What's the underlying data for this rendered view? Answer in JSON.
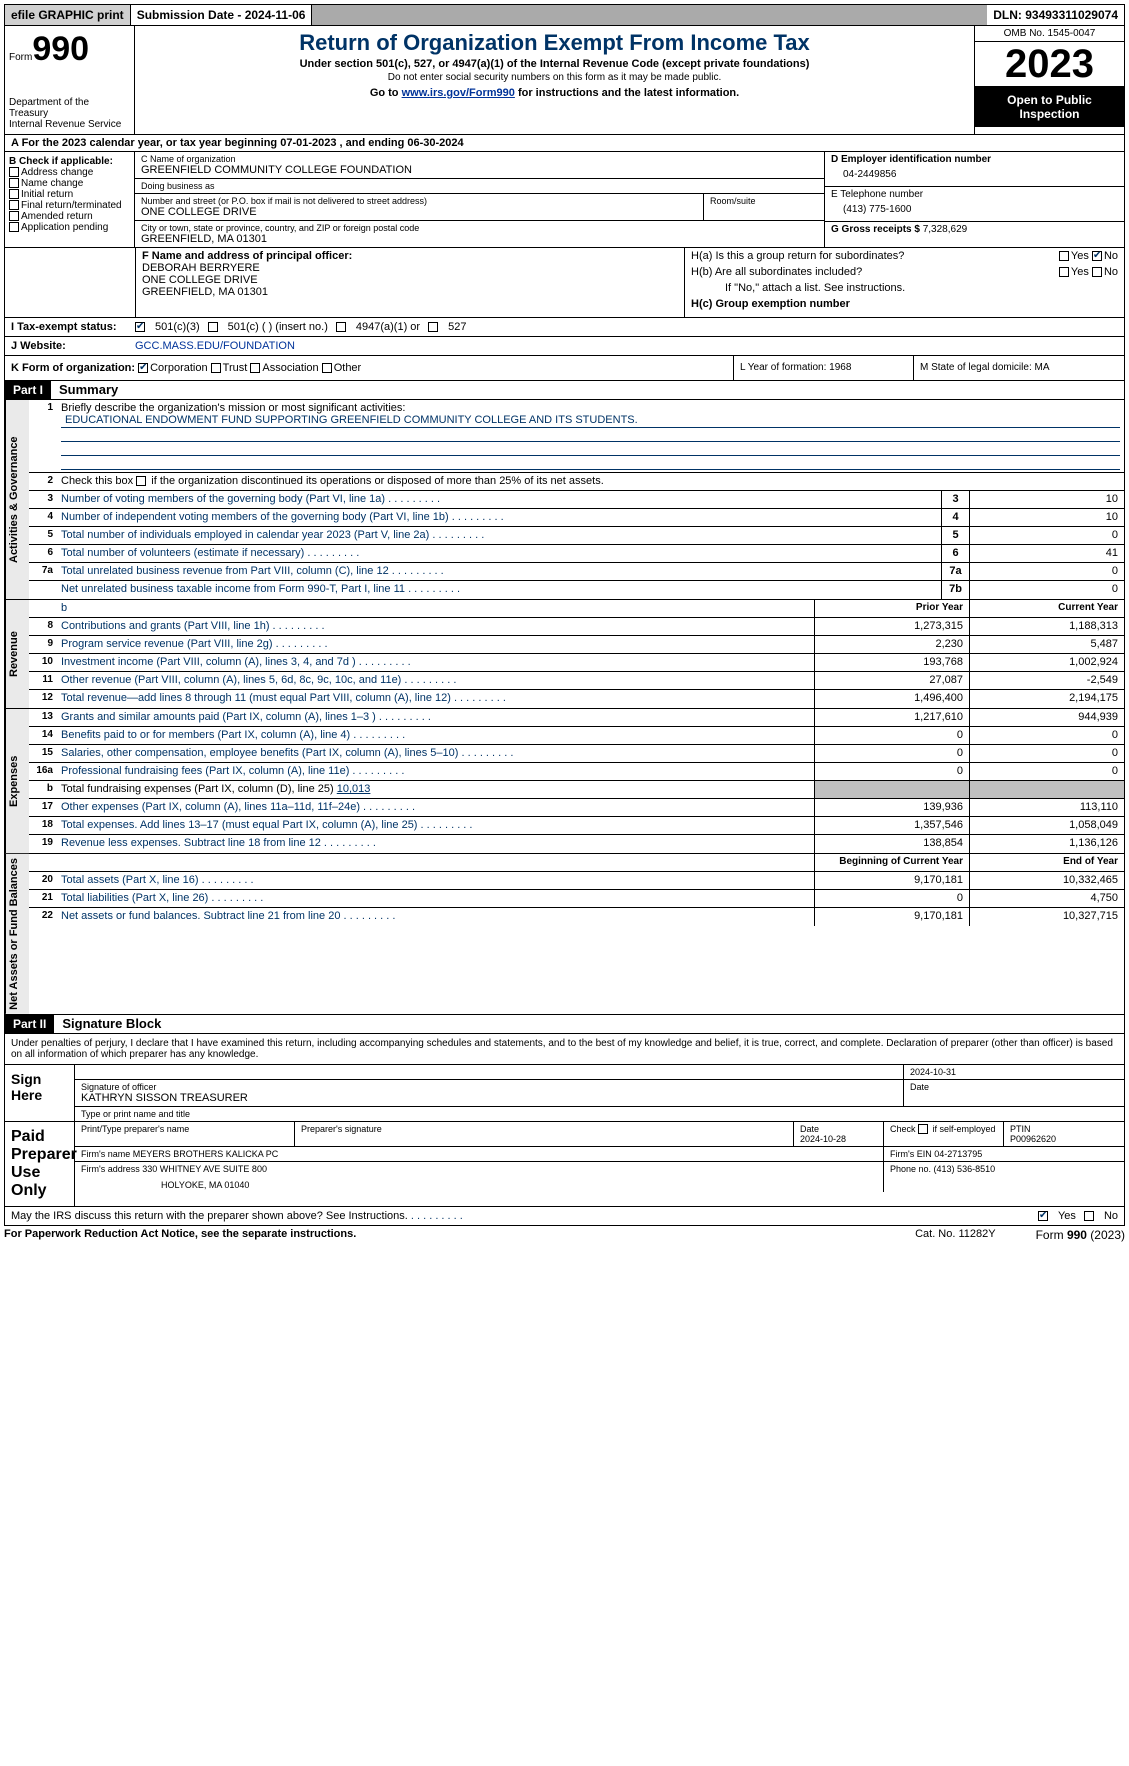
{
  "topbar": {
    "efile": "efile GRAPHIC print",
    "submission": "Submission Date - 2024-11-06",
    "dln": "DLN: 93493311029074"
  },
  "header": {
    "form_word": "Form",
    "form_num": "990",
    "dept": "Department of the Treasury\nInternal Revenue Service",
    "title": "Return of Organization Exempt From Income Tax",
    "sub1": "Under section 501(c), 527, or 4947(a)(1) of the Internal Revenue Code (except private foundations)",
    "sub2": "Do not enter social security numbers on this form as it may be made public.",
    "sub3_pre": "Go to ",
    "sub3_link": "www.irs.gov/Form990",
    "sub3_post": " for instructions and the latest information.",
    "omb": "OMB No. 1545-0047",
    "year": "2023",
    "inspect": "Open to Public Inspection"
  },
  "rowA": {
    "text_pre": "A For the 2023 calendar year, or tax year beginning ",
    "begin": "07-01-2023",
    "mid": "  , and ending ",
    "end": "06-30-2024"
  },
  "colB": {
    "label": "B Check if applicable:",
    "items": [
      "Address change",
      "Name change",
      "Initial return",
      "Final return/terminated",
      "Amended return",
      "Application pending"
    ]
  },
  "colC": {
    "name_lbl": "C Name of organization",
    "name": "GREENFIELD COMMUNITY COLLEGE FOUNDATION",
    "dba_lbl": "Doing business as",
    "dba": "",
    "street_lbl": "Number and street (or P.O. box if mail is not delivered to street address)",
    "street": "ONE COLLEGE DRIVE",
    "room_lbl": "Room/suite",
    "city_lbl": "City or town, state or province, country, and ZIP or foreign postal code",
    "city": "GREENFIELD, MA  01301"
  },
  "colD": {
    "lbl": "D Employer identification number",
    "val": "04-2449856"
  },
  "colE": {
    "lbl": "E Telephone number",
    "val": "(413) 775-1600"
  },
  "colG": {
    "lbl": "G Gross receipts $ ",
    "val": "7,328,629"
  },
  "colF": {
    "lbl": "F  Name and address of principal officer:",
    "name": "DEBORAH BERRYERE",
    "addr1": "ONE COLLEGE DRIVE",
    "addr2": "GREENFIELD, MA  01301"
  },
  "colH": {
    "a": "H(a)  Is this a group return for subordinates?",
    "a_yes": "Yes",
    "a_no": "No",
    "b": "H(b)  Are all subordinates included?",
    "b_yes": "Yes",
    "b_no": "No",
    "b_note": "If \"No,\" attach a list. See instructions.",
    "c": "H(c)  Group exemption number "
  },
  "rowI": {
    "label": "I  Tax-exempt status:",
    "opt1": "501(c)(3)",
    "opt2": "501(c) (  ) (insert no.)",
    "opt3": "4947(a)(1) or",
    "opt4": "527"
  },
  "rowJ": {
    "label": "J  Website:",
    "val": "GCC.MASS.EDU/FOUNDATION"
  },
  "rowK": {
    "label": "K Form of organization:",
    "opts": [
      "Corporation",
      "Trust",
      "Association",
      "Other"
    ]
  },
  "rowL": {
    "text": "L Year of formation: 1968"
  },
  "rowM": {
    "text": "M State of legal domicile: MA"
  },
  "part1": {
    "hdr": "Part I",
    "title": "Summary",
    "mission_lbl": "Briefly describe the organization's mission or most significant activities:",
    "mission": "EDUCATIONAL ENDOWMENT FUND SUPPORTING GREENFIELD COMMUNITY COLLEGE AND ITS STUDENTS.",
    "line2": "Check this box      if the organization discontinued its operations or disposed of more than 25% of its net assets.",
    "vtab_gov": "Activities & Governance",
    "vtab_rev": "Revenue",
    "vtab_exp": "Expenses",
    "vtab_net": "Net Assets or Fund Balances",
    "prior_hdr": "Prior Year",
    "current_hdr": "Current Year",
    "boy_hdr": "Beginning of Current Year",
    "eoy_hdr": "End of Year",
    "lines_gov": [
      {
        "n": "3",
        "d": "Number of voting members of the governing body (Part VI, line 1a)",
        "box": "3",
        "v": "10"
      },
      {
        "n": "4",
        "d": "Number of independent voting members of the governing body (Part VI, line 1b)",
        "box": "4",
        "v": "10"
      },
      {
        "n": "5",
        "d": "Total number of individuals employed in calendar year 2023 (Part V, line 2a)",
        "box": "5",
        "v": "0"
      },
      {
        "n": "6",
        "d": "Total number of volunteers (estimate if necessary)",
        "box": "6",
        "v": "41"
      },
      {
        "n": "7a",
        "d": "Total unrelated business revenue from Part VIII, column (C), line 12",
        "box": "7a",
        "v": "0"
      },
      {
        "n": "",
        "d": "Net unrelated business taxable income from Form 990-T, Part I, line 11",
        "box": "7b",
        "v": "0"
      }
    ],
    "lines_rev": [
      {
        "n": "8",
        "d": "Contributions and grants (Part VIII, line 1h)",
        "p": "1,273,315",
        "c": "1,188,313"
      },
      {
        "n": "9",
        "d": "Program service revenue (Part VIII, line 2g)",
        "p": "2,230",
        "c": "5,487"
      },
      {
        "n": "10",
        "d": "Investment income (Part VIII, column (A), lines 3, 4, and 7d )",
        "p": "193,768",
        "c": "1,002,924"
      },
      {
        "n": "11",
        "d": "Other revenue (Part VIII, column (A), lines 5, 6d, 8c, 9c, 10c, and 11e)",
        "p": "27,087",
        "c": "-2,549"
      },
      {
        "n": "12",
        "d": "Total revenue—add lines 8 through 11 (must equal Part VIII, column (A), line 12)",
        "p": "1,496,400",
        "c": "2,194,175"
      }
    ],
    "lines_exp": [
      {
        "n": "13",
        "d": "Grants and similar amounts paid (Part IX, column (A), lines 1–3 )",
        "p": "1,217,610",
        "c": "944,939"
      },
      {
        "n": "14",
        "d": "Benefits paid to or for members (Part IX, column (A), line 4)",
        "p": "0",
        "c": "0"
      },
      {
        "n": "15",
        "d": "Salaries, other compensation, employee benefits (Part IX, column (A), lines 5–10)",
        "p": "0",
        "c": "0"
      },
      {
        "n": "16a",
        "d": "Professional fundraising fees (Part IX, column (A), line 11e)",
        "p": "0",
        "c": "0"
      },
      {
        "n": "b",
        "d": "Total fundraising expenses (Part IX, column (D), line 25) ",
        "extra": "10,013",
        "grey": true
      },
      {
        "n": "17",
        "d": "Other expenses (Part IX, column (A), lines 11a–11d, 11f–24e)",
        "p": "139,936",
        "c": "113,110"
      },
      {
        "n": "18",
        "d": "Total expenses. Add lines 13–17 (must equal Part IX, column (A), line 25)",
        "p": "1,357,546",
        "c": "1,058,049"
      },
      {
        "n": "19",
        "d": "Revenue less expenses. Subtract line 18 from line 12",
        "p": "138,854",
        "c": "1,136,126"
      }
    ],
    "lines_net": [
      {
        "n": "20",
        "d": "Total assets (Part X, line 16)",
        "p": "9,170,181",
        "c": "10,332,465"
      },
      {
        "n": "21",
        "d": "Total liabilities (Part X, line 26)",
        "p": "0",
        "c": "4,750"
      },
      {
        "n": "22",
        "d": "Net assets or fund balances. Subtract line 21 from line 20",
        "p": "9,170,181",
        "c": "10,327,715"
      }
    ]
  },
  "part2": {
    "hdr": "Part II",
    "title": "Signature Block",
    "declaration": "Under penalties of perjury, I declare that I have examined this return, including accompanying schedules and statements, and to the best of my knowledge and belief, it is true, correct, and complete. Declaration of preparer (other than officer) is based on all information of which preparer has any knowledge.",
    "sign_here": "Sign Here",
    "sig_date": "2024-10-31",
    "sig_lbl": "Signature of officer",
    "sig_name": "KATHRYN SISSON  TREASURER",
    "sig_type_lbl": "Type or print name and title",
    "date_lbl": "Date",
    "paid": "Paid Preparer Use Only",
    "prep_name_lbl": "Print/Type preparer's name",
    "prep_sig_lbl": "Preparer's signature",
    "prep_date_lbl": "Date",
    "prep_date": "2024-10-28",
    "self_emp": "Check        if self-employed",
    "ptin_lbl": "PTIN",
    "ptin": "P00962620",
    "firm_name_lbl": "Firm's name   ",
    "firm_name": "MEYERS BROTHERS KALICKA PC",
    "firm_ein_lbl": "Firm's EIN  ",
    "firm_ein": "04-2713795",
    "firm_addr_lbl": "Firm's address ",
    "firm_addr1": "330 WHITNEY AVE SUITE 800",
    "firm_addr2": "HOLYOKE, MA  01040",
    "phone_lbl": "Phone no. ",
    "phone": "(413) 536-8510",
    "discuss": "May the IRS discuss this return with the preparer shown above? See Instructions.",
    "yes": "Yes",
    "no": "No"
  },
  "footer": {
    "left": "For Paperwork Reduction Act Notice, see the separate instructions.",
    "center": "Cat. No. 11282Y",
    "right_pre": "Form ",
    "right_form": "990",
    "right_post": " (2023)"
  }
}
